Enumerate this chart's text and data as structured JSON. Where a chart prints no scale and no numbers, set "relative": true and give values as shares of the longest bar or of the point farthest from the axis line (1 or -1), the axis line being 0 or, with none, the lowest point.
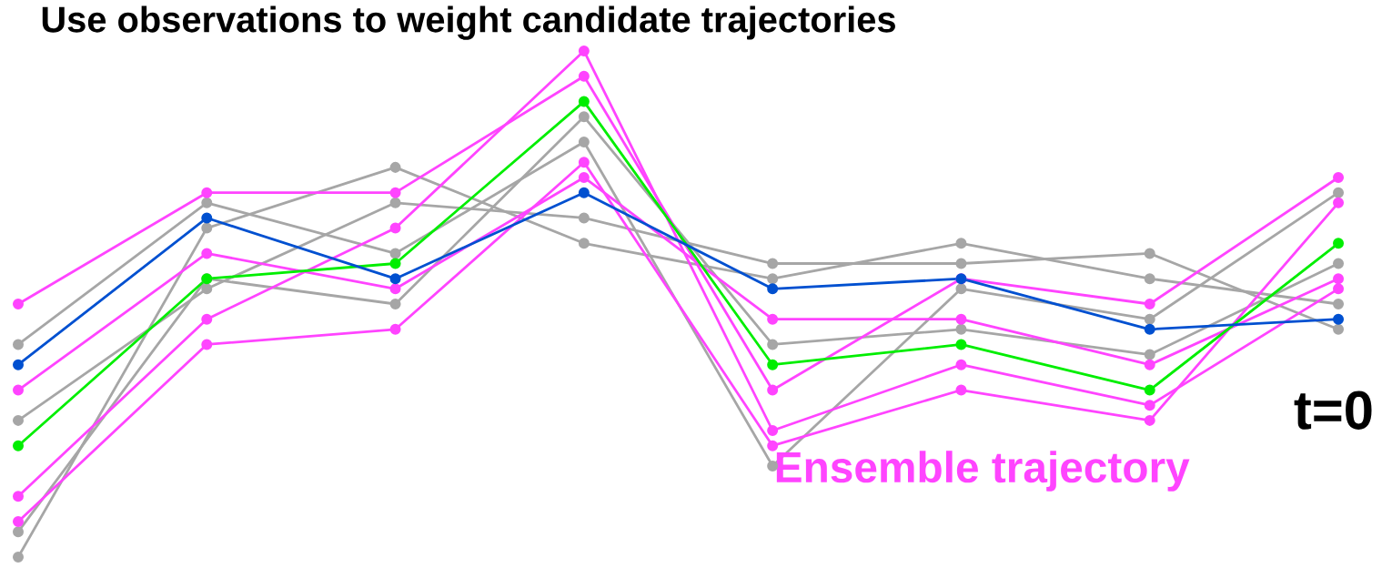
{
  "chart_data": {
    "type": "line",
    "title": "Use observations to weight candidate trajectories",
    "relative": true,
    "marker": "circle",
    "line_style": "solid",
    "categories": [
      null,
      null,
      null,
      null,
      null,
      null,
      null,
      null
    ],
    "series": [
      {
        "color": "#a6a6a6",
        "values": [
          0.42,
          0.7,
          0.6,
          0.82,
          0.18,
          0.53,
          0.47,
          0.72
        ]
      },
      {
        "color": "#a6a6a6",
        "values": [
          0.27,
          0.53,
          0.7,
          0.67,
          0.58,
          0.58,
          0.6,
          0.45
        ]
      },
      {
        "color": "#a6a6a6",
        "values": [
          0.05,
          0.55,
          0.5,
          0.87,
          0.42,
          0.45,
          0.4,
          0.58
        ]
      },
      {
        "color": "#a6a6a6",
        "values": [
          0,
          0.65,
          0.77,
          0.62,
          0.55,
          0.62,
          0.55,
          0.5
        ]
      },
      {
        "color": "#ff44ff",
        "values": [
          0.5,
          0.72,
          0.72,
          0.95,
          0.33,
          0.55,
          0.5,
          0.75
        ]
      },
      {
        "color": "#ff44ff",
        "values": [
          0.33,
          0.6,
          0.53,
          0.75,
          0.47,
          0.47,
          0.38,
          0.55
        ]
      },
      {
        "color": "#ff44ff",
        "values": [
          0.12,
          0.47,
          0.65,
          1,
          0.25,
          0.38,
          0.3,
          0.53
        ]
      },
      {
        "name": "Ensemble trajectory",
        "color": "#ff44ff",
        "values": [
          0.07,
          0.42,
          0.45,
          0.78,
          0.22,
          0.33,
          0.27,
          0.7
        ]
      },
      {
        "color": "#00ee00",
        "values": [
          0.22,
          0.55,
          0.58,
          0.9,
          0.38,
          0.42,
          0.33,
          0.62
        ]
      },
      {
        "color": "#0050d0",
        "values": [
          0.38,
          0.67,
          0.55,
          0.72,
          0.53,
          0.55,
          0.45,
          0.47
        ]
      }
    ],
    "annotations": [
      "t=0"
    ]
  }
}
